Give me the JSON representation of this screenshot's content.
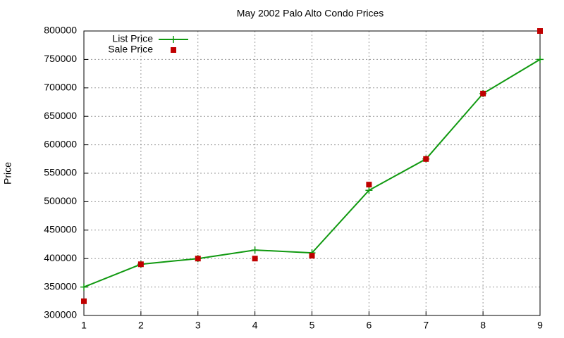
{
  "chart_data": {
    "type": "line",
    "title": "May 2002 Palo Alto Condo Prices",
    "y_label": "Price",
    "x": [
      1,
      2,
      3,
      4,
      5,
      6,
      7,
      8,
      9
    ],
    "series": [
      {
        "name": "List Price",
        "color": "#109910",
        "style": "linespoints",
        "values": [
          350000,
          390000,
          400000,
          415000,
          410000,
          520000,
          575000,
          690000,
          750000
        ]
      },
      {
        "name": "Sale Price",
        "color": "#c00000",
        "style": "points",
        "values": [
          325000,
          390000,
          400000,
          400000,
          405000,
          530000,
          575000,
          690000,
          800000
        ]
      }
    ],
    "xlim": [
      1,
      9
    ],
    "xticks": [
      1,
      2,
      3,
      4,
      5,
      6,
      7,
      8,
      9
    ],
    "ylim": [
      300000,
      800000
    ],
    "yticks": [
      300000,
      350000,
      400000,
      450000,
      500000,
      550000,
      600000,
      650000,
      700000,
      750000,
      800000
    ],
    "grid": true,
    "legend": "top-left"
  }
}
